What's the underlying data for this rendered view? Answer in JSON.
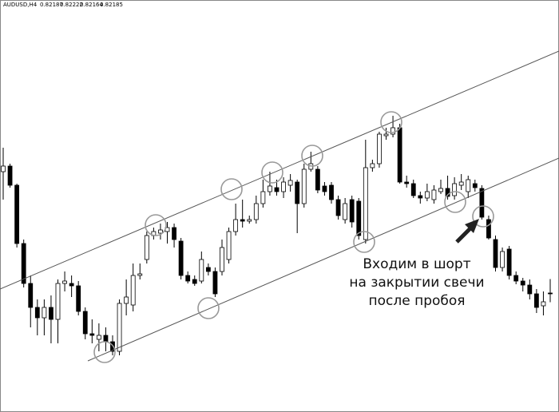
{
  "header": {
    "symbol": "AUDUSD,H4"
  },
  "annotation": {
    "lines": [
      "Входим в шорт",
      "на закрытии свечи",
      "после пробоя"
    ]
  },
  "chart_data": {
    "type": "candlestick",
    "ylim": [
      0.81889,
      0.82921
    ],
    "up_color": "#ffffff",
    "down_color": "#000000",
    "open": [
      0.82491,
      0.82505,
      0.82457,
      0.82311,
      0.82211,
      0.82151,
      0.82125,
      0.82151,
      0.82121,
      0.82211,
      0.82211,
      0.82205,
      0.82141,
      0.82085,
      0.82071,
      0.82081,
      0.82065,
      0.82041,
      0.82161,
      0.82157,
      0.82231,
      0.82271,
      0.82331,
      0.82337,
      0.82341,
      0.82351,
      0.82317,
      0.82231,
      0.82221,
      0.82217,
      0.82251,
      0.82241,
      0.82241,
      0.82271,
      0.82341,
      0.82371,
      0.82367,
      0.82371,
      0.82411,
      0.82441,
      0.82451,
      0.82441,
      0.82457,
      0.82465,
      0.82411,
      0.82497,
      0.82497,
      0.82455,
      0.82457,
      0.82421,
      0.82371,
      0.82421,
      0.82417,
      0.82321,
      0.82501,
      0.82511,
      0.82581,
      0.82585,
      0.82601,
      0.82465,
      0.82461,
      0.82431,
      0.82425,
      0.82421,
      0.82441,
      0.82449,
      0.82431,
      0.82457,
      0.82441,
      0.82461,
      0.82449,
      0.82371,
      0.82321,
      0.82251,
      0.82297,
      0.82231,
      0.82217,
      0.82207,
      0.82185,
      0.82155,
      0.82187
    ],
    "high": [
      0.82551,
      0.82511,
      0.82461,
      0.82321,
      0.82231,
      0.82171,
      0.82171,
      0.82181,
      0.82221,
      0.82241,
      0.82231,
      0.82217,
      0.82151,
      0.82121,
      0.82111,
      0.82101,
      0.82081,
      0.82171,
      0.82221,
      0.82261,
      0.82261,
      0.82341,
      0.82351,
      0.82361,
      0.82365,
      0.82361,
      0.82325,
      0.82241,
      0.82231,
      0.82291,
      0.82261,
      0.82251,
      0.82321,
      0.82351,
      0.82411,
      0.82421,
      0.82381,
      0.82431,
      0.82471,
      0.82491,
      0.82471,
      0.82477,
      0.82485,
      0.82471,
      0.82511,
      0.82541,
      0.82505,
      0.82465,
      0.82465,
      0.82431,
      0.82425,
      0.82431,
      0.82425,
      0.82571,
      0.82521,
      0.82591,
      0.82601,
      0.82631,
      0.82611,
      0.82481,
      0.82471,
      0.82441,
      0.82461,
      0.82457,
      0.82471,
      0.82481,
      0.82477,
      0.82485,
      0.82481,
      0.82471,
      0.82457,
      0.82381,
      0.82331,
      0.82301,
      0.82305,
      0.82241,
      0.82225,
      0.82221,
      0.82197,
      0.82191,
      0.82222
    ],
    "low": [
      0.82421,
      0.82451,
      0.82301,
      0.82201,
      0.82101,
      0.82081,
      0.82081,
      0.82061,
      0.82061,
      0.82191,
      0.82177,
      0.82131,
      0.82071,
      0.82061,
      0.82041,
      0.82041,
      0.82031,
      0.82031,
      0.82131,
      0.82141,
      0.82221,
      0.82261,
      0.82321,
      0.82321,
      0.82311,
      0.82301,
      0.82221,
      0.82211,
      0.82205,
      0.82211,
      0.82231,
      0.82177,
      0.82231,
      0.82261,
      0.82331,
      0.82351,
      0.82361,
      0.82361,
      0.82401,
      0.82431,
      0.82431,
      0.82425,
      0.82441,
      0.82337,
      0.82401,
      0.82491,
      0.82437,
      0.82431,
      0.82411,
      0.82371,
      0.82361,
      0.82351,
      0.82321,
      0.82311,
      0.82491,
      0.82501,
      0.82571,
      0.82577,
      0.82461,
      0.82451,
      0.82425,
      0.82411,
      0.82417,
      0.82411,
      0.82435,
      0.82421,
      0.82421,
      0.82445,
      0.82425,
      0.82441,
      0.82371,
      0.82321,
      0.82241,
      0.82241,
      0.82221,
      0.82209,
      0.82191,
      0.82171,
      0.82137,
      0.82131,
      0.82164
    ],
    "close": [
      0.82505,
      0.82457,
      0.82311,
      0.82211,
      0.82151,
      0.82125,
      0.82151,
      0.82121,
      0.82211,
      0.82217,
      0.82205,
      0.82141,
      0.82085,
      0.82081,
      0.82081,
      0.82065,
      0.82041,
      0.82161,
      0.82177,
      0.82231,
      0.82235,
      0.82331,
      0.82341,
      0.82345,
      0.82351,
      0.82321,
      0.82231,
      0.82217,
      0.82211,
      0.82271,
      0.82241,
      0.82185,
      0.82301,
      0.82341,
      0.82371,
      0.82367,
      0.82371,
      0.82411,
      0.82441,
      0.82455,
      0.82441,
      0.82465,
      0.82469,
      0.82411,
      0.82497,
      0.82511,
      0.82445,
      0.82441,
      0.82421,
      0.82381,
      0.82411,
      0.82365,
      0.82331,
      0.82501,
      0.82511,
      0.82585,
      0.82585,
      0.82601,
      0.82465,
      0.82461,
      0.82431,
      0.82425,
      0.82441,
      0.82445,
      0.82449,
      0.82429,
      0.82461,
      0.82465,
      0.82471,
      0.82451,
      0.82377,
      0.82325,
      0.82251,
      0.82291,
      0.82231,
      0.82217,
      0.82207,
      0.82185,
      0.82151,
      0.82165,
      0.82185
    ]
  }
}
